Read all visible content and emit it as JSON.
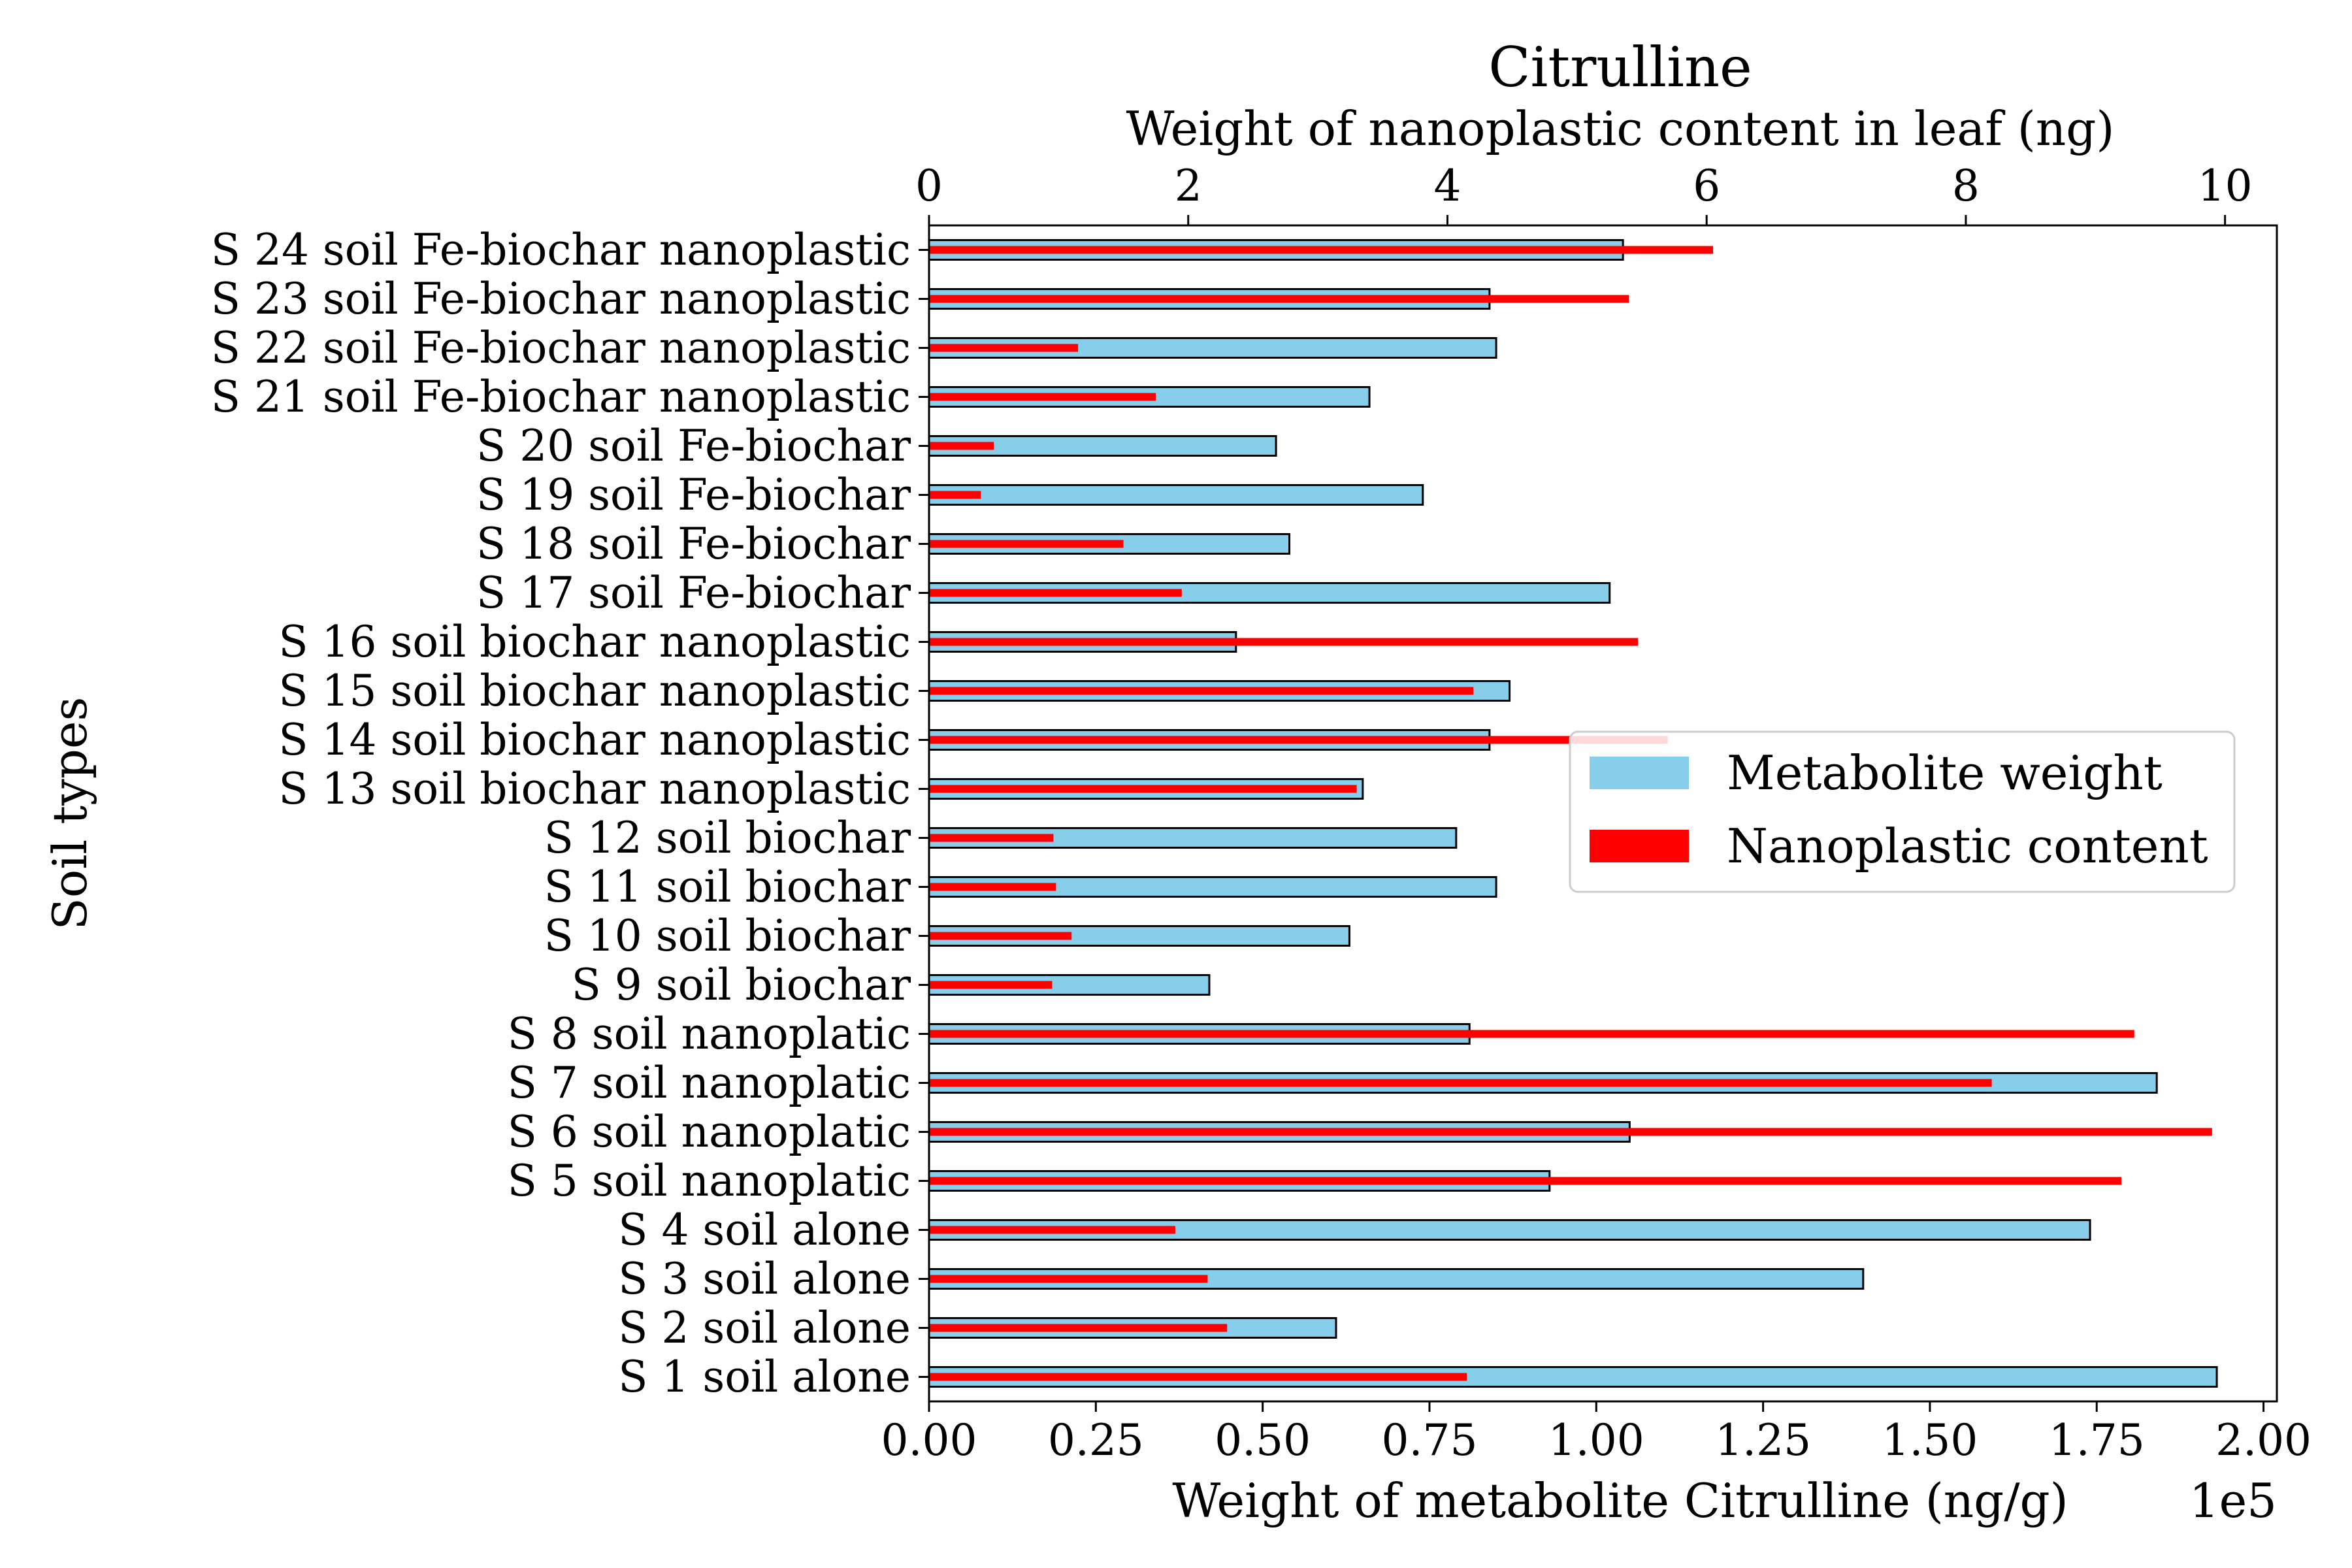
{
  "chart_data": {
    "type": "bar",
    "orientation": "horizontal",
    "title": "Citrulline",
    "title_color": "#a52a2a",
    "top_xlabel": "Weight of nanoplastic content in leaf (ng)",
    "bottom_xlabel": "Weight of metabolite Citrulline (ng/g)",
    "bottom_offset_text": "1e5",
    "ylabel": "Soil types",
    "bottom_xlim": [
      0,
      2.02
    ],
    "bottom_ticks": [
      "0.00",
      "0.25",
      "0.50",
      "0.75",
      "1.00",
      "1.25",
      "1.50",
      "1.75",
      "2.00"
    ],
    "top_xlim": [
      0,
      10.4
    ],
    "top_ticks": [
      "0",
      "2",
      "4",
      "6",
      "8",
      "10"
    ],
    "categories": [
      "S 1 soil alone",
      "S 2 soil alone",
      "S 3 soil alone",
      "S 4 soil alone",
      "S 5 soil nanoplatic",
      "S 6 soil nanoplatic",
      "S 7 soil nanoplatic",
      "S 8 soil nanoplatic",
      "S 9 soil biochar",
      "S 10 soil biochar",
      "S 11 soil biochar",
      "S 12 soil biochar",
      "S 13 soil biochar nanoplastic",
      "S 14 soil biochar nanoplastic",
      "S 15 soil biochar nanoplastic",
      "S 16 soil biochar nanoplastic",
      "S 17 soil Fe-biochar",
      "S 18 soil Fe-biochar",
      "S 19 soil Fe-biochar",
      "S 20 soil Fe-biochar",
      "S 21 soil Fe-biochar nanoplastic",
      "S 22 soil Fe-biochar nanoplastic",
      "S 23 soil Fe-biochar nanoplastic",
      "S 24 soil Fe-biochar nanoplastic"
    ],
    "series": [
      {
        "name": "Metabolite weight",
        "axis": "bottom",
        "unit_scale": "1e5",
        "color": "#87ceeb",
        "values": [
          1.93,
          0.61,
          1.4,
          1.74,
          0.93,
          1.05,
          1.84,
          0.81,
          0.42,
          0.63,
          0.85,
          0.79,
          0.65,
          0.84,
          0.87,
          0.46,
          1.02,
          0.54,
          0.74,
          0.52,
          0.66,
          0.85,
          0.84,
          1.04
        ]
      },
      {
        "name": "Nanoplastic content",
        "axis": "top",
        "color": "#ff0000",
        "values": [
          4.15,
          2.3,
          2.15,
          1.9,
          9.2,
          9.9,
          8.2,
          9.3,
          0.95,
          1.1,
          0.98,
          0.96,
          3.3,
          5.7,
          4.2,
          5.47,
          1.95,
          1.5,
          0.4,
          0.5,
          1.75,
          1.15,
          5.4,
          6.05
        ]
      }
    ],
    "legend": {
      "position": "center-right",
      "entries": [
        "Metabolite weight",
        "Nanoplastic content"
      ]
    },
    "grid": false
  }
}
